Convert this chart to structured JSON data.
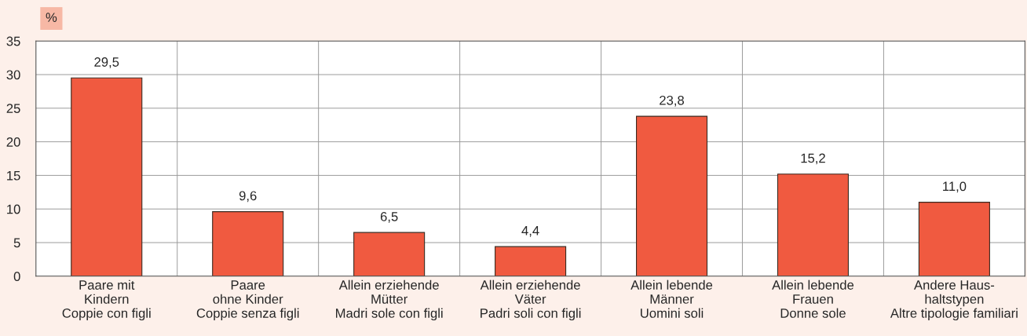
{
  "chart_data": {
    "type": "bar",
    "ylabel": "%",
    "categories": [
      "Paare mit\nKindern\nCoppie con figli",
      "Paare\nohne Kinder\nCoppie senza figli",
      "Allein erziehende\nMütter\nMadri sole con figli",
      "Allein erziehende\nVäter\nPadri soli con figli",
      "Allein lebende\nMänner\nUomini soli",
      "Allein lebende\nFrauen\nDonne sole",
      "Andere Haus-\nhaltstypen\nAltre tipologie familiari"
    ],
    "values": [
      29.5,
      9.6,
      6.5,
      4.4,
      23.8,
      15.2,
      11.0
    ],
    "value_labels": [
      "29,5",
      "9,6",
      "6,5",
      "4,4",
      "23,8",
      "15,2",
      "11,0"
    ],
    "color": "#f05a40",
    "ylim": [
      0,
      35
    ],
    "yticks": [
      0,
      5,
      10,
      15,
      20,
      25,
      30,
      35
    ],
    "grid": true,
    "legend": false
  }
}
